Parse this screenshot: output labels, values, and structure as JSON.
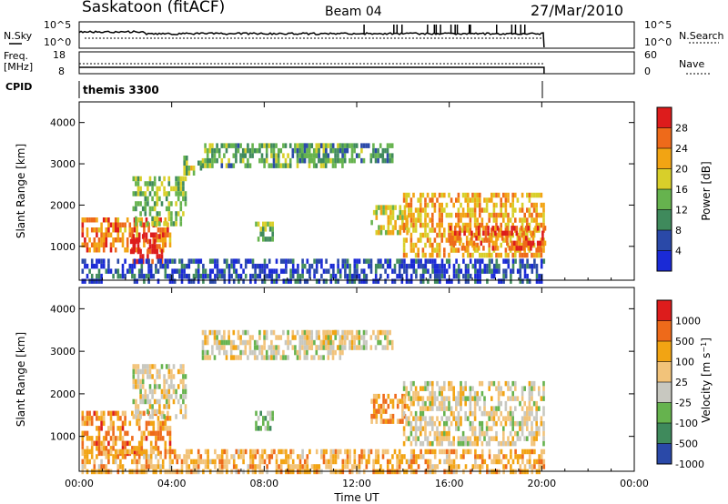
{
  "header": {
    "station": "Saskatoon (fitACF)",
    "beam": "Beam 04",
    "date": "27/Mar/2010"
  },
  "noise_panel": {
    "left_label": "N.Sky",
    "left_ticks": [
      "10^5",
      "10^0"
    ],
    "right_ticks": [
      "10^5",
      "10^0"
    ],
    "right_label": "N.Search"
  },
  "freq_panel": {
    "left_label_1": "Freq.",
    "left_label_2": "[MHz]",
    "left_ticks": [
      "18",
      "8"
    ],
    "right_ticks": [
      "60",
      "0"
    ],
    "right_label": "Nave"
  },
  "cpid_panel": {
    "label": "CPID",
    "program": "themis 3300"
  },
  "colors": {
    "scale_power": [
      "#1a2ad6",
      "#2a49a8",
      "#3f8a5c",
      "#66b34e",
      "#d8cf2a",
      "#f2a413",
      "#ee6a1a",
      "#dd1c1c"
    ],
    "scale_velocity": [
      "#dd1c1c",
      "#ee6a1a",
      "#f2a413",
      "#f2c37a",
      "#c8c8c0",
      "#66b34e",
      "#3f8a5c",
      "#2a49a8"
    ]
  },
  "chart_data": [
    {
      "type": "heatmap",
      "name": "power",
      "ylabel": "Slant Range [km]",
      "yticks": [
        "1000",
        "2000",
        "3000",
        "4000"
      ],
      "ylim": [
        180,
        4500
      ],
      "xlim": [
        0,
        24
      ],
      "xticks": [
        "00:00",
        "04:00",
        "08:00",
        "12:00",
        "16:00",
        "20:00",
        "00:00"
      ],
      "colorbar_label": "Power [dB]",
      "colorbar_ticks": [
        "4",
        "8",
        "12",
        "16",
        "20",
        "24",
        "28"
      ],
      "grid": false,
      "regions": [
        {
          "t0": 0.1,
          "t1": 3.9,
          "r0": 900,
          "r1": 1700,
          "level": 0.78
        },
        {
          "t0": 2.2,
          "t1": 3.6,
          "r0": 600,
          "r1": 1300,
          "level": 0.96
        },
        {
          "t0": 2.3,
          "t1": 4.6,
          "r0": 1500,
          "r1": 2700,
          "level": 0.45
        },
        {
          "t0": 4.5,
          "t1": 5.3,
          "r0": 2800,
          "r1": 3200,
          "level": 0.5
        },
        {
          "t0": 5.3,
          "t1": 11.5,
          "r0": 2900,
          "r1": 3500,
          "level": 0.4
        },
        {
          "t0": 9.5,
          "t1": 13.5,
          "r0": 3100,
          "r1": 3500,
          "level": 0.35
        },
        {
          "t0": 7.6,
          "t1": 8.4,
          "r0": 1200,
          "r1": 1600,
          "level": 0.45
        },
        {
          "t0": 12.6,
          "t1": 14.2,
          "r0": 1300,
          "r1": 2000,
          "level": 0.55
        },
        {
          "t0": 14.0,
          "t1": 20.1,
          "r0": 800,
          "r1": 2300,
          "level": 0.68
        },
        {
          "t0": 16.0,
          "t1": 20.1,
          "r0": 1000,
          "r1": 1500,
          "level": 0.85
        },
        {
          "t0": 0.1,
          "t1": 20.1,
          "r0": 200,
          "r1": 700,
          "level": 0.15
        }
      ]
    },
    {
      "type": "heatmap",
      "name": "velocity",
      "ylabel": "Slant Range [km]",
      "yticks": [
        "1000",
        "2000",
        "3000",
        "4000"
      ],
      "ylim": [
        180,
        4500
      ],
      "xlim": [
        0,
        24
      ],
      "xticks": [
        "00:00",
        "04:00",
        "08:00",
        "12:00",
        "16:00",
        "20:00",
        "00:00"
      ],
      "xlabel": "Time UT",
      "colorbar_label": "Velocity [m s^-1]",
      "colorbar_ticks": [
        "1000",
        "500",
        "100",
        "25",
        "-25",
        "-100",
        "-500",
        "-1000"
      ],
      "grid": false,
      "regions": [
        {
          "t0": 0.1,
          "t1": 3.9,
          "r0": 600,
          "r1": 1600,
          "level": 0.28
        },
        {
          "t0": 2.3,
          "t1": 4.6,
          "r0": 1500,
          "r1": 2700,
          "level": 0.5
        },
        {
          "t0": 5.3,
          "t1": 11.5,
          "r0": 2900,
          "r1": 3500,
          "level": 0.5
        },
        {
          "t0": 9.5,
          "t1": 13.5,
          "r0": 3100,
          "r1": 3500,
          "level": 0.5
        },
        {
          "t0": 7.6,
          "t1": 8.4,
          "r0": 1200,
          "r1": 1600,
          "level": 0.68
        },
        {
          "t0": 12.6,
          "t1": 14.2,
          "r0": 1300,
          "r1": 2000,
          "level": 0.3
        },
        {
          "t0": 14.0,
          "t1": 20.1,
          "r0": 800,
          "r1": 2300,
          "level": 0.5
        },
        {
          "t0": 0.1,
          "t1": 20.1,
          "r0": 200,
          "r1": 700,
          "level": 0.35
        }
      ]
    }
  ]
}
